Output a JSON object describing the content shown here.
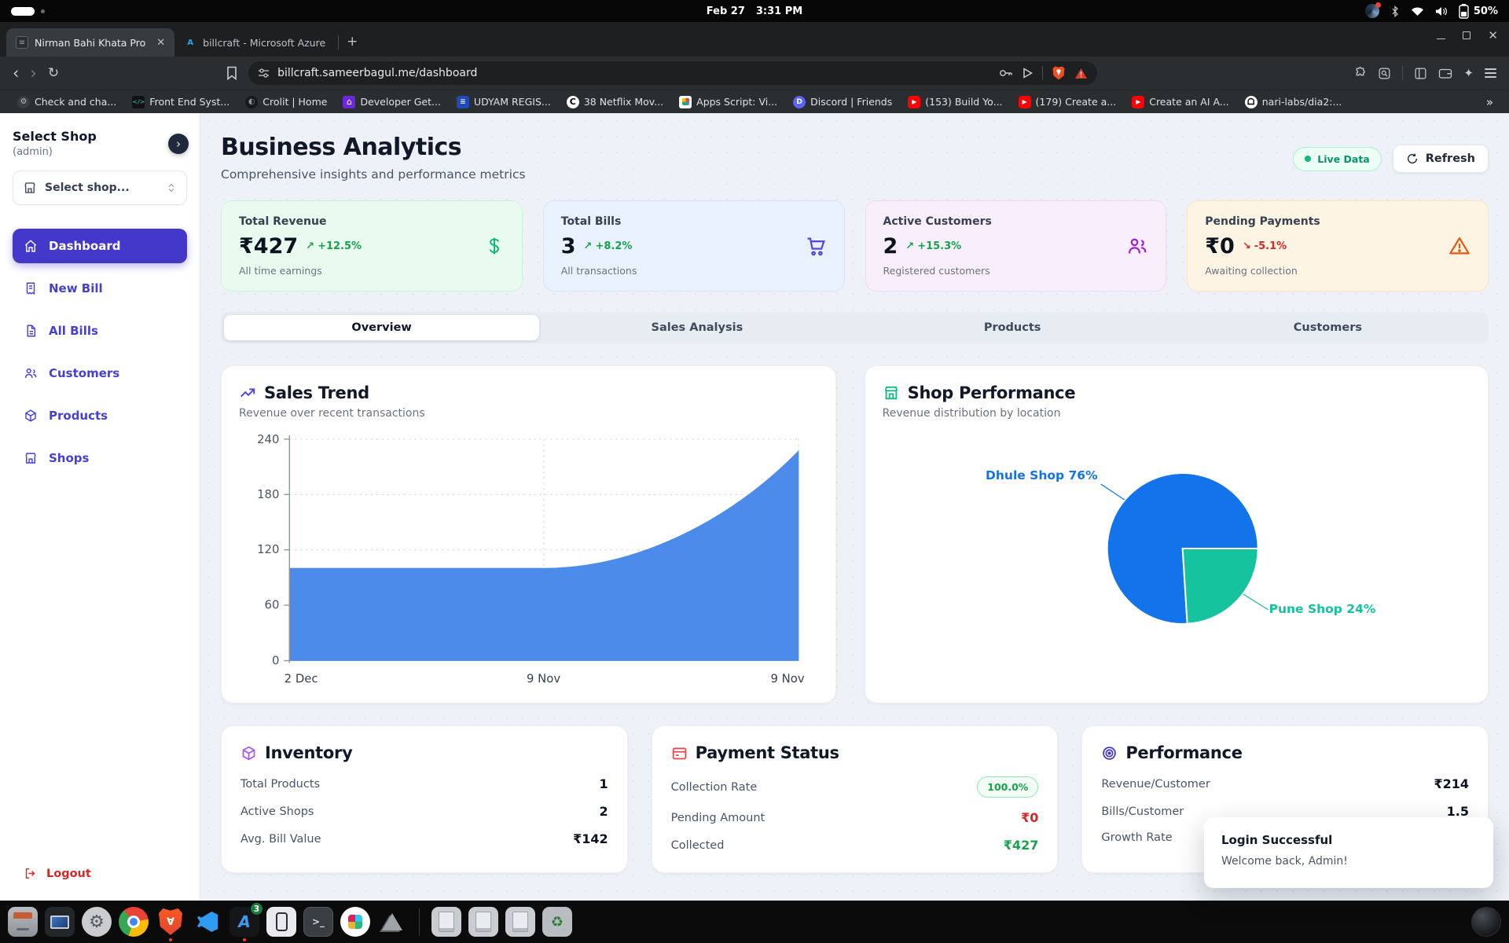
{
  "system_bar": {
    "date": "Feb 27",
    "time": "3:31 PM",
    "battery": "50%"
  },
  "browser": {
    "tabs": [
      {
        "title": "Nirman Bahi Khata Pro"
      },
      {
        "title": "billcraft - Microsoft Azure"
      }
    ],
    "new_tab": "+",
    "url": "billcraft.sameerbagul.me/dashboard",
    "bookmarks": [
      {
        "label": "Check and cha...",
        "icon": "gear-icon"
      },
      {
        "label": "Front End Syst...",
        "icon": "code-icon"
      },
      {
        "label": "Crolit | Home",
        "icon": "globe-icon"
      },
      {
        "label": "Developer Get...",
        "icon": "home-icon"
      },
      {
        "label": "UDYAM REGIS...",
        "icon": "document-icon"
      },
      {
        "label": "38 Netflix Mov...",
        "icon": "letter-c-icon"
      },
      {
        "label": "Apps Script: Vi...",
        "icon": "google-apps-icon"
      },
      {
        "label": "Discord | Friends",
        "icon": "discord-icon"
      },
      {
        "label": "(153) Build Yo...",
        "icon": "youtube-icon"
      },
      {
        "label": "(179) Create a...",
        "icon": "youtube-icon"
      },
      {
        "label": "Create an AI A...",
        "icon": "youtube-icon"
      },
      {
        "label": "nari-labs/dia2:...",
        "icon": "github-icon"
      }
    ],
    "overflow": "»"
  },
  "sidebar": {
    "heading": "Select Shop",
    "subheading": "(admin)",
    "shop_select_placeholder": "Select shop...",
    "nav": [
      {
        "label": "Dashboard"
      },
      {
        "label": "New Bill"
      },
      {
        "label": "All Bills"
      },
      {
        "label": "Customers"
      },
      {
        "label": "Products"
      },
      {
        "label": "Shops"
      }
    ],
    "logout_label": "Logout"
  },
  "header": {
    "title": "Business Analytics",
    "subtitle": "Comprehensive insights and performance metrics",
    "live_badge": "Live Data",
    "refresh_label": "Refresh"
  },
  "stats": [
    {
      "label": "Total Revenue",
      "value": "₹427",
      "trend": "+12.5%",
      "trend_dir": "up",
      "sub": "All time earnings",
      "icon": "dollar-icon"
    },
    {
      "label": "Total Bills",
      "value": "3",
      "trend": "+8.2%",
      "trend_dir": "up",
      "sub": "All transactions",
      "icon": "cart-icon"
    },
    {
      "label": "Active Customers",
      "value": "2",
      "trend": "+15.3%",
      "trend_dir": "up",
      "sub": "Registered customers",
      "icon": "users-icon"
    },
    {
      "label": "Pending Payments",
      "value": "₹0",
      "trend": "-5.1%",
      "trend_dir": "down",
      "sub": "Awaiting collection",
      "icon": "alert-icon"
    }
  ],
  "tabs": [
    "Overview",
    "Sales Analysis",
    "Products",
    "Customers"
  ],
  "chart_data": [
    {
      "type": "area",
      "title": "Sales Trend",
      "subtitle": "Revenue over recent transactions",
      "x": [
        "2 Dec",
        "9 Nov",
        "9 Nov"
      ],
      "values": [
        100,
        100,
        227
      ],
      "ylim": [
        0,
        240
      ],
      "y_ticks": [
        "0",
        "60",
        "120",
        "180",
        "240"
      ],
      "color": "#4d8bea",
      "grid": "dotted",
      "legend": "none"
    },
    {
      "type": "pie",
      "title": "Shop Performance",
      "subtitle": "Revenue distribution by location",
      "slices": [
        {
          "label": "Dhule Shop",
          "pct": 76,
          "color": "#1273eb"
        },
        {
          "label": "Pune Shop",
          "pct": 24,
          "color": "#15c39e"
        }
      ],
      "legend": "callout-labels"
    }
  ],
  "cards": {
    "inventory": {
      "title": "Inventory",
      "rows": [
        {
          "label": "Total Products",
          "value": "1"
        },
        {
          "label": "Active Shops",
          "value": "2"
        },
        {
          "label": "Avg. Bill Value",
          "value": "₹142"
        }
      ]
    },
    "payment": {
      "title": "Payment Status",
      "rows": [
        {
          "label": "Collection Rate",
          "value": "100.0%"
        },
        {
          "label": "Pending Amount",
          "value": "₹0"
        },
        {
          "label": "Collected",
          "value": "₹427"
        }
      ]
    },
    "performance": {
      "title": "Performance",
      "rows": [
        {
          "label": "Revenue/Customer",
          "value": "₹214"
        },
        {
          "label": "Bills/Customer",
          "value": "1.5"
        },
        {
          "label": "Growth Rate",
          "value": ""
        }
      ]
    }
  },
  "toast": {
    "title": "Login Successful",
    "body": "Welcome back, Admin!"
  },
  "icons": {
    "trend_up": "↗",
    "trend_down": "↘"
  }
}
